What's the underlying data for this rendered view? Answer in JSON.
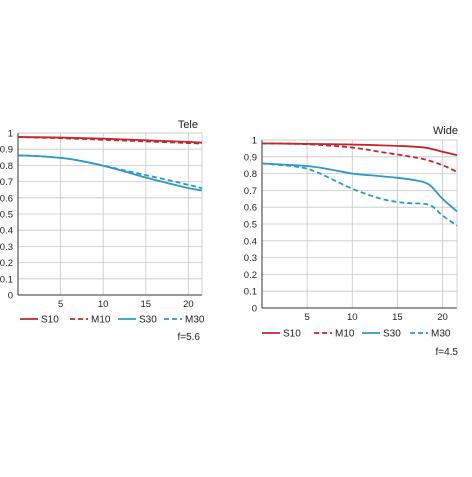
{
  "colors": {
    "red": "#c0282d",
    "blue": "#2a9bc9",
    "grid": "#c8c8c8",
    "axis": "#333333"
  },
  "chart_data": [
    {
      "type": "line",
      "title": "Tele",
      "xlabel": "",
      "ylabel": "",
      "xlim": [
        0,
        21.6
      ],
      "ylim": [
        0,
        1
      ],
      "x_ticks": [
        "5",
        "10",
        "15",
        "20"
      ],
      "y_ticks": [
        "0",
        "0.1",
        "0.2",
        "0.3",
        "0.4",
        "0.5",
        "0.6",
        "0.7",
        "0.8",
        "0.9",
        "1"
      ],
      "grid": true,
      "legend_position": "bottom",
      "note": "f=5.6",
      "series": [
        {
          "name": "S10",
          "color": "red",
          "dashed": false,
          "x": [
            0,
            5,
            10,
            15,
            20,
            21.6
          ],
          "values": [
            0.975,
            0.972,
            0.965,
            0.955,
            0.945,
            0.94
          ]
        },
        {
          "name": "M10",
          "color": "red",
          "dashed": true,
          "x": [
            0,
            5,
            10,
            15,
            20,
            21.6
          ],
          "values": [
            0.975,
            0.968,
            0.958,
            0.948,
            0.938,
            0.935
          ]
        },
        {
          "name": "S30",
          "color": "blue",
          "dashed": false,
          "x": [
            0,
            3,
            6,
            9,
            12,
            15,
            18,
            20,
            21.6
          ],
          "values": [
            0.862,
            0.855,
            0.84,
            0.81,
            0.77,
            0.725,
            0.685,
            0.66,
            0.645
          ]
        },
        {
          "name": "M30",
          "color": "blue",
          "dashed": true,
          "x": [
            0,
            3,
            6,
            9,
            12,
            15,
            18,
            20,
            21.6
          ],
          "values": [
            0.862,
            0.855,
            0.84,
            0.81,
            0.775,
            0.74,
            0.705,
            0.68,
            0.66
          ]
        }
      ]
    },
    {
      "type": "line",
      "title": "Wide",
      "xlabel": "",
      "ylabel": "",
      "xlim": [
        0,
        21.6
      ],
      "ylim": [
        0,
        1
      ],
      "x_ticks": [
        "5",
        "10",
        "15",
        "20"
      ],
      "y_ticks": [
        "0",
        "0.1",
        "0.2",
        "0.3",
        "0.4",
        "0.5",
        "0.6",
        "0.7",
        "0.8",
        "0.9",
        "1"
      ],
      "grid": true,
      "legend_position": "bottom",
      "note": "f=4.5",
      "series": [
        {
          "name": "S10",
          "color": "red",
          "dashed": false,
          "x": [
            0,
            5,
            10,
            15,
            18,
            20,
            21.6
          ],
          "values": [
            0.98,
            0.977,
            0.973,
            0.965,
            0.955,
            0.93,
            0.91
          ]
        },
        {
          "name": "M10",
          "color": "red",
          "dashed": true,
          "x": [
            0,
            5,
            10,
            13,
            16,
            18,
            20,
            21.6
          ],
          "values": [
            0.98,
            0.975,
            0.955,
            0.93,
            0.905,
            0.885,
            0.85,
            0.81
          ]
        },
        {
          "name": "S30",
          "color": "blue",
          "dashed": false,
          "x": [
            0,
            5,
            8,
            10,
            12,
            15,
            17,
            18.5,
            20,
            21.6
          ],
          "values": [
            0.86,
            0.845,
            0.82,
            0.8,
            0.79,
            0.775,
            0.76,
            0.735,
            0.65,
            0.575
          ]
        },
        {
          "name": "M30",
          "color": "blue",
          "dashed": true,
          "x": [
            0,
            4,
            6,
            8,
            10,
            12,
            14,
            16,
            18,
            19,
            20,
            21.6
          ],
          "values": [
            0.86,
            0.84,
            0.81,
            0.76,
            0.71,
            0.67,
            0.64,
            0.625,
            0.62,
            0.6,
            0.55,
            0.49
          ]
        }
      ]
    }
  ]
}
